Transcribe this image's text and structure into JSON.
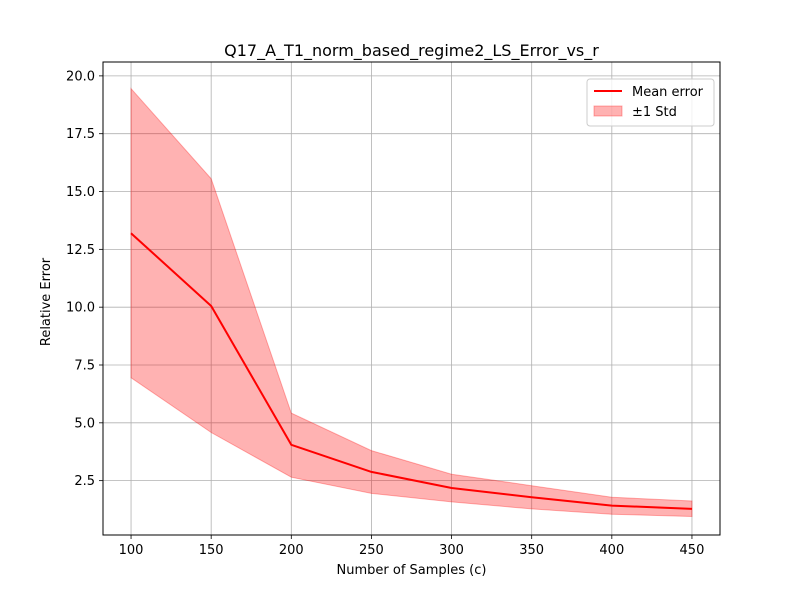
{
  "chart_data": {
    "type": "line",
    "title": "Q17_A_T1_norm_based_regime2_LS_Error_vs_r",
    "xlabel": "Number of Samples (c)",
    "ylabel": "Relative Error",
    "x": [
      100,
      150,
      200,
      250,
      300,
      350,
      400,
      450
    ],
    "xlim": [
      82.5,
      467.5
    ],
    "ylim": [
      0.15,
      20.6
    ],
    "xticks": [
      100,
      150,
      200,
      250,
      300,
      350,
      400,
      450
    ],
    "yticks": [
      2.5,
      5.0,
      7.5,
      10.0,
      12.5,
      15.0,
      17.5,
      20.0
    ],
    "ytick_labels": [
      "2.5",
      "5.0",
      "7.5",
      "10.0",
      "12.5",
      "15.0",
      "17.5",
      "20.0"
    ],
    "grid": true,
    "legend_position": "top-right",
    "series": [
      {
        "name": "Mean error",
        "kind": "line",
        "color": "#ff0000",
        "values": [
          13.2,
          10.05,
          4.05,
          2.88,
          2.18,
          1.78,
          1.42,
          1.28
        ]
      },
      {
        "name": "±1 Std",
        "kind": "band",
        "color": "#ff9999",
        "upper": [
          19.45,
          15.55,
          5.42,
          3.8,
          2.78,
          2.28,
          1.78,
          1.62
        ],
        "lower": [
          6.95,
          4.58,
          2.65,
          1.95,
          1.58,
          1.28,
          1.05,
          0.95
        ]
      }
    ]
  }
}
